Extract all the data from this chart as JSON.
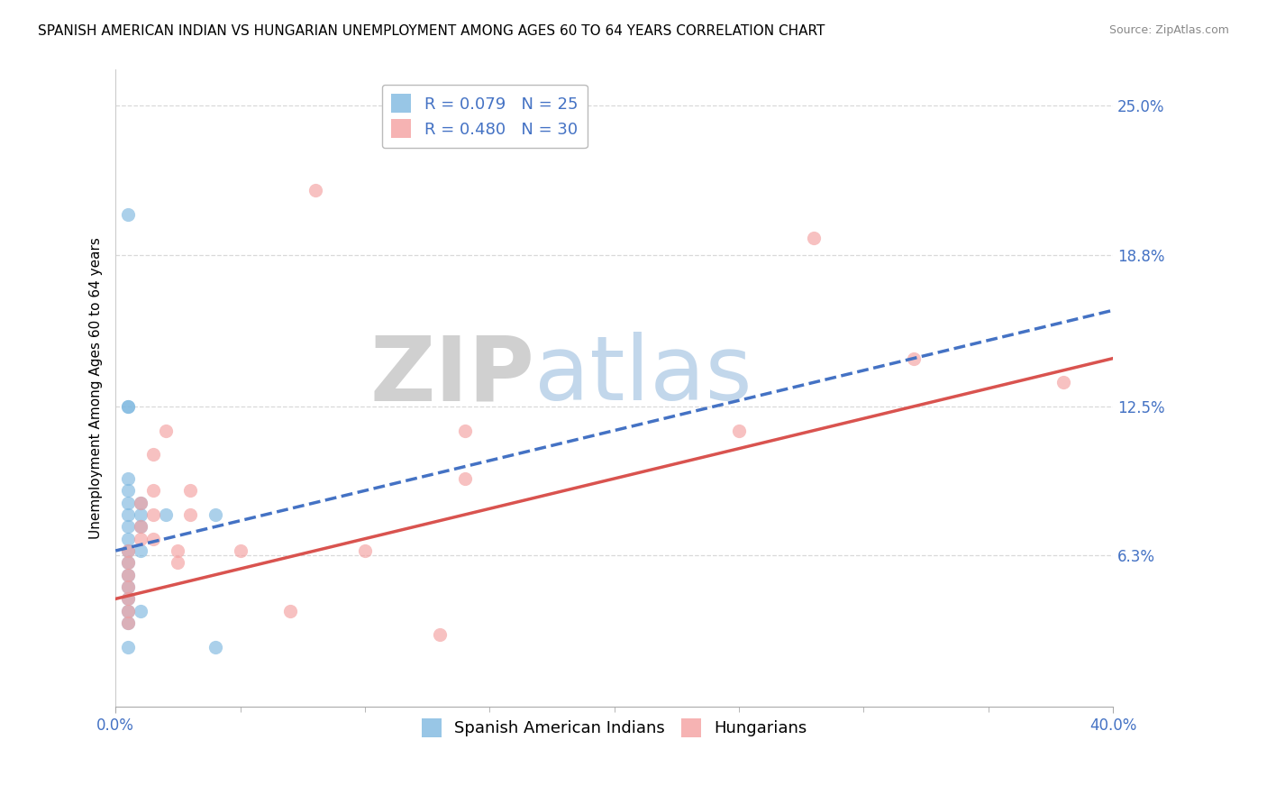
{
  "title": "SPANISH AMERICAN INDIAN VS HUNGARIAN UNEMPLOYMENT AMONG AGES 60 TO 64 YEARS CORRELATION CHART",
  "source": "Source: ZipAtlas.com",
  "ylabel": "Unemployment Among Ages 60 to 64 years",
  "xlim": [
    0.0,
    0.4
  ],
  "ylim": [
    0.0,
    0.265
  ],
  "yticks": [
    0.063,
    0.125,
    0.188,
    0.25
  ],
  "ytick_labels": [
    "6.3%",
    "12.5%",
    "18.8%",
    "25.0%"
  ],
  "xtick_labels": [
    "0.0%",
    "40.0%"
  ],
  "xticks": [
    0.0,
    0.4
  ],
  "legend_line1": "R = 0.079   N = 25",
  "legend_line2": "R = 0.480   N = 30",
  "legend_labels_bottom": [
    "Spanish American Indians",
    "Hungarians"
  ],
  "blue_color": "#7eb8e0",
  "pink_color": "#f4a0a0",
  "blue_line_color": "#4472c4",
  "pink_line_color": "#d9534f",
  "watermark_zip": "ZIP",
  "watermark_atlas": "atlas",
  "blue_scatter": [
    [
      0.005,
      0.205
    ],
    [
      0.005,
      0.125
    ],
    [
      0.005,
      0.125
    ],
    [
      0.005,
      0.095
    ],
    [
      0.005,
      0.09
    ],
    [
      0.005,
      0.085
    ],
    [
      0.005,
      0.08
    ],
    [
      0.005,
      0.075
    ],
    [
      0.005,
      0.07
    ],
    [
      0.005,
      0.065
    ],
    [
      0.005,
      0.06
    ],
    [
      0.005,
      0.055
    ],
    [
      0.005,
      0.05
    ],
    [
      0.005,
      0.045
    ],
    [
      0.005,
      0.04
    ],
    [
      0.005,
      0.035
    ],
    [
      0.005,
      0.025
    ],
    [
      0.01,
      0.085
    ],
    [
      0.01,
      0.08
    ],
    [
      0.01,
      0.075
    ],
    [
      0.01,
      0.065
    ],
    [
      0.01,
      0.04
    ],
    [
      0.02,
      0.08
    ],
    [
      0.04,
      0.08
    ],
    [
      0.04,
      0.025
    ]
  ],
  "pink_scatter": [
    [
      0.005,
      0.065
    ],
    [
      0.005,
      0.06
    ],
    [
      0.005,
      0.055
    ],
    [
      0.005,
      0.05
    ],
    [
      0.005,
      0.045
    ],
    [
      0.005,
      0.04
    ],
    [
      0.005,
      0.035
    ],
    [
      0.01,
      0.085
    ],
    [
      0.01,
      0.075
    ],
    [
      0.01,
      0.07
    ],
    [
      0.015,
      0.105
    ],
    [
      0.015,
      0.09
    ],
    [
      0.015,
      0.08
    ],
    [
      0.015,
      0.07
    ],
    [
      0.02,
      0.115
    ],
    [
      0.025,
      0.065
    ],
    [
      0.025,
      0.06
    ],
    [
      0.03,
      0.09
    ],
    [
      0.03,
      0.08
    ],
    [
      0.05,
      0.065
    ],
    [
      0.07,
      0.04
    ],
    [
      0.08,
      0.215
    ],
    [
      0.1,
      0.065
    ],
    [
      0.13,
      0.03
    ],
    [
      0.14,
      0.115
    ],
    [
      0.14,
      0.095
    ],
    [
      0.25,
      0.115
    ],
    [
      0.28,
      0.195
    ],
    [
      0.32,
      0.145
    ],
    [
      0.38,
      0.135
    ]
  ],
  "blue_trend": {
    "x_start": 0.0,
    "y_start": 0.065,
    "x_end": 0.4,
    "y_end": 0.165
  },
  "pink_trend": {
    "x_start": 0.0,
    "y_start": 0.045,
    "x_end": 0.4,
    "y_end": 0.145
  },
  "background_color": "#ffffff",
  "grid_color": "#d0d0d0",
  "title_fontsize": 11,
  "axis_label_fontsize": 11,
  "tick_fontsize": 12,
  "legend_fontsize": 13
}
